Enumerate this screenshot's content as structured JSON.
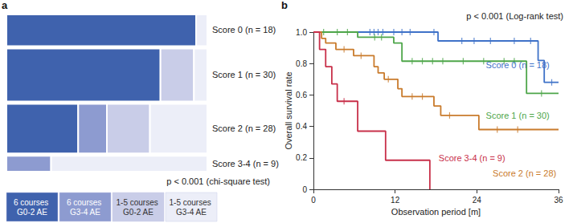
{
  "chart_data": [
    {
      "type": "mosaic",
      "title": "a",
      "annotation": "p < 0.001 (chi-square test)",
      "categories": [
        "6 courses G0-2 AE",
        "6 courses G3-4 AE",
        "1-5 courses G0-2 AE",
        "1-5 courses G3-4 AE"
      ],
      "colors": [
        "#3f62ad",
        "#8d9bd0",
        "#c9cde8",
        "#eceef8"
      ],
      "rows": [
        {
          "label": "Score 0 (n = 18)",
          "values": [
            17,
            0,
            0,
            1
          ]
        },
        {
          "label": "Score 1 (n = 30)",
          "values": [
            23,
            0,
            5,
            2
          ]
        },
        {
          "label": "Score 2 (n = 28)",
          "values": [
            10,
            4,
            6,
            8
          ]
        },
        {
          "label": "Score 3-4 (n = 9)",
          "values": [
            0,
            2,
            0,
            7
          ]
        }
      ]
    },
    {
      "type": "line",
      "title": "b",
      "subtitle": "p < 0.001 (Log-rank test)",
      "x_label": "Observation period [m]",
      "y_label": "Overall survival rate",
      "xlim": [
        0,
        36
      ],
      "xticks": [
        0,
        12,
        24,
        36
      ],
      "ylim": [
        0,
        1
      ],
      "yticks": [
        0,
        0.2,
        0.4,
        0.6,
        0.8,
        {
          "value": 1,
          "label": "1.0"
        }
      ],
      "line_style": "step",
      "series": [
        {
          "name": "Score 0 (n = 18)",
          "color": "#3f72c8",
          "x": [
            0,
            18.3,
            33,
            33.9,
            36
          ],
          "values": [
            1,
            0.944,
            0.82,
            0.68,
            0.68
          ],
          "censor_x": [
            8.3,
            8.9,
            9.5,
            10.2,
            11.8,
            13,
            14.2,
            17.7,
            21.8,
            23.6,
            26,
            29.5,
            31.9,
            35
          ]
        },
        {
          "name": "Score 1 (n = 30)",
          "color": "#4ea64a",
          "x": [
            0,
            6.5,
            11.8,
            13,
            31.3,
            36
          ],
          "values": [
            1,
            0.967,
            0.93,
            0.815,
            0.61,
            0.61
          ],
          "censor_x": [
            1.5,
            3.5,
            5,
            9,
            10,
            14.5,
            16,
            17.5,
            19,
            22,
            25,
            28,
            29.5,
            33.5
          ]
        },
        {
          "name": "Score 2 (n = 28)",
          "color": "#c97b2c",
          "x": [
            0,
            1.2,
            1.8,
            3.3,
            5.9,
            8.9,
            9.5,
            10.4,
            12.4,
            13,
            17.7,
            18.7,
            24.3,
            36
          ],
          "values": [
            1,
            0.96,
            0.93,
            0.89,
            0.85,
            0.78,
            0.74,
            0.7,
            0.64,
            0.59,
            0.53,
            0.47,
            0.38,
            0.38
          ],
          "censor_x": [
            4.5,
            7,
            11,
            14.5,
            16,
            20,
            27,
            30
          ]
        },
        {
          "name": "Score 3-4 (n = 9)",
          "color": "#c8304a",
          "x": [
            0,
            0.9,
            1.8,
            2.7,
            3.5,
            6.5,
            10.6,
            17.1
          ],
          "values": [
            1,
            0.89,
            0.78,
            0.67,
            0.56,
            0.37,
            0.185,
            0
          ],
          "censor_x": [
            4.5
          ]
        }
      ]
    }
  ]
}
